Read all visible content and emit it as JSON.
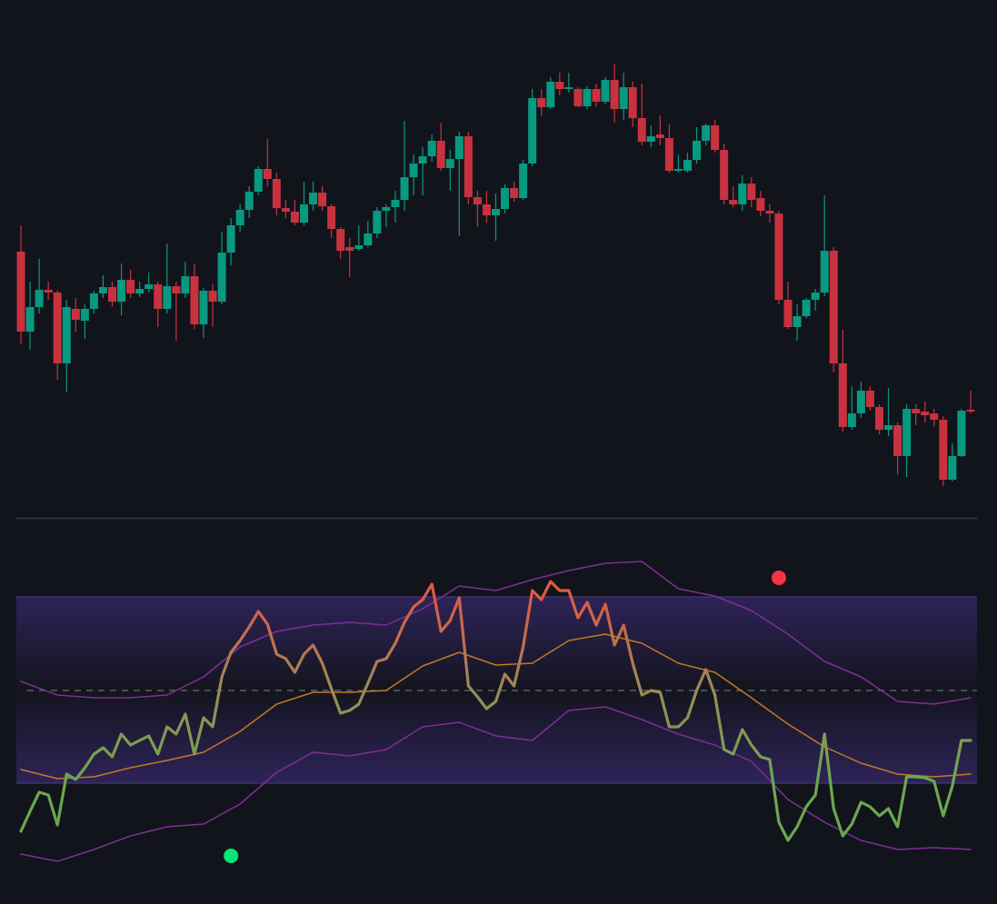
{
  "chart_data": [
    {
      "type": "candlestick",
      "up_color": "#089981",
      "down_color": "#c8323e",
      "xlim": [
        -0.5,
        104.7
      ],
      "ylim": [
        0,
        550
      ],
      "open": [
        293,
        205,
        232,
        251,
        248,
        170,
        230,
        217,
        230,
        247,
        254,
        238,
        262,
        247,
        252,
        257,
        230,
        255,
        247,
        266,
        213,
        250,
        238,
        292,
        322,
        339,
        359,
        384,
        373,
        341,
        337,
        325,
        345,
        358,
        343,
        318,
        298,
        296,
        300,
        313,
        338,
        342,
        350,
        375,
        390,
        398,
        415,
        385,
        395,
        420,
        353,
        345,
        333,
        340,
        363,
        352,
        390,
        462,
        452,
        480,
        472,
        472,
        453,
        472,
        458,
        482,
        450,
        474,
        440,
        414,
        422,
        418,
        382,
        382,
        394,
        415,
        432,
        405,
        350,
        345,
        368,
        352,
        338,
        335,
        240,
        210,
        222,
        240,
        248,
        294,
        170,
        100,
        115,
        140,
        122,
        97,
        102,
        68,
        120,
        117,
        115,
        108,
        42,
        68,
        119
      ],
      "high": [
        322,
        260,
        285,
        260,
        250,
        240,
        242,
        235,
        250,
        267,
        260,
        280,
        273,
        260,
        270,
        260,
        302,
        260,
        282,
        280,
        253,
        257,
        315,
        330,
        345,
        365,
        387,
        417,
        380,
        350,
        350,
        370,
        370,
        365,
        345,
        320,
        308,
        322,
        327,
        342,
        345,
        360,
        437,
        400,
        408,
        422,
        435,
        405,
        425,
        425,
        360,
        360,
        357,
        367,
        370,
        394,
        472,
        472,
        485,
        490,
        490,
        474,
        475,
        478,
        485,
        500,
        490,
        480,
        478,
        432,
        443,
        433,
        400,
        402,
        430,
        434,
        438,
        412,
        365,
        377,
        375,
        360,
        345,
        338,
        260,
        235,
        242,
        252,
        355,
        298,
        207,
        145,
        150,
        145,
        125,
        143,
        105,
        125,
        125,
        128,
        120,
        112,
        82,
        120,
        140
      ],
      "low": [
        192,
        185,
        225,
        240,
        152,
        138,
        205,
        197,
        225,
        242,
        233,
        223,
        242,
        243,
        248,
        210,
        225,
        195,
        242,
        208,
        198,
        210,
        235,
        278,
        315,
        330,
        355,
        365,
        333,
        330,
        322,
        322,
        338,
        338,
        308,
        285,
        265,
        294,
        298,
        308,
        320,
        325,
        338,
        355,
        355,
        392,
        382,
        360,
        310,
        345,
        320,
        325,
        305,
        335,
        348,
        350,
        387,
        442,
        450,
        465,
        468,
        452,
        450,
        452,
        455,
        435,
        438,
        430,
        410,
        408,
        410,
        380,
        380,
        380,
        390,
        410,
        402,
        345,
        342,
        338,
        342,
        332,
        325,
        235,
        208,
        195,
        220,
        228,
        244,
        160,
        95,
        97,
        110,
        118,
        92,
        90,
        48,
        45,
        102,
        105,
        100,
        35,
        40,
        67,
        115
      ],
      "close": [
        205,
        232,
        251,
        248,
        170,
        232,
        218,
        230,
        247,
        254,
        238,
        262,
        247,
        252,
        257,
        230,
        255,
        247,
        266,
        213,
        250,
        238,
        292,
        322,
        339,
        359,
        384,
        373,
        341,
        337,
        325,
        345,
        358,
        343,
        318,
        294,
        294,
        300,
        313,
        338,
        342,
        350,
        375,
        390,
        398,
        415,
        385,
        395,
        420,
        353,
        345,
        333,
        340,
        363,
        352,
        390,
        462,
        452,
        480,
        472,
        474,
        453,
        472,
        458,
        482,
        450,
        474,
        440,
        414,
        420,
        418,
        382,
        384,
        394,
        415,
        432,
        405,
        350,
        345,
        368,
        350,
        338,
        335,
        240,
        210,
        222,
        240,
        248,
        294,
        170,
        100,
        115,
        140,
        122,
        97,
        102,
        68,
        120,
        115,
        113,
        108,
        42,
        68,
        118,
        117
      ]
    },
    {
      "type": "oscillator",
      "xlim": [
        -0.5,
        104.7
      ],
      "ylim": [
        0,
        370
      ],
      "levels": [
        307,
        204,
        102
      ],
      "band_color": "#2e2358",
      "level_color": "#3b3568",
      "series": [
        {
          "colors": [
            "#dd5a45",
            "#9c8a58",
            "#6aa84f"
          ],
          "values": [
            49,
            71,
            92,
            89,
            56,
            112,
            106,
            119,
            134,
            141,
            131,
            156,
            144,
            149,
            154,
            134,
            164,
            156,
            178,
            134,
            174,
            164,
            219,
            246,
            259,
            274,
            291,
            277,
            244,
            239,
            224,
            244,
            254,
            234,
            206,
            179,
            182,
            189,
            212,
            236,
            239,
            256,
            279,
            296,
            304,
            321,
            269,
            281,
            306,
            209,
            197,
            184,
            192,
            222,
            209,
            252,
            314,
            304,
            324,
            314,
            314,
            284,
            301,
            276,
            299,
            254,
            276,
            234,
            199,
            204,
            202,
            164,
            164,
            174,
            204,
            227,
            199,
            139,
            134,
            161,
            144,
            131,
            128,
            59,
            39,
            54,
            76,
            89,
            156,
            74,
            44,
            57,
            81,
            76,
            66,
            74,
            54,
            109,
            109,
            108,
            104,
            66,
            99,
            149,
            149
          ]
        },
        {
          "color": "#c27a22",
          "x": [
            0,
            4,
            8,
            12,
            16,
            20,
            24,
            28,
            32,
            36,
            40,
            44,
            48,
            52,
            56,
            60,
            64,
            68,
            72,
            76,
            80,
            84,
            88,
            92,
            96,
            100,
            104
          ],
          "values": [
            117,
            107,
            109,
            119,
            127,
            136,
            159,
            189,
            202,
            202,
            204,
            231,
            246,
            232,
            234,
            259,
            266,
            256,
            234,
            224,
            196,
            167,
            142,
            124,
            112,
            109,
            112
          ]
        },
        {
          "color": "#7e2f96",
          "x": [
            0,
            4,
            8,
            12,
            16,
            20,
            24,
            28,
            32,
            36,
            40,
            44,
            48,
            52,
            56,
            60,
            64,
            68,
            72,
            76,
            80,
            84,
            88,
            92,
            96,
            100,
            104
          ],
          "values": [
            214,
            199,
            196,
            196,
            199,
            219,
            252,
            269,
            276,
            279,
            276,
            294,
            319,
            314,
            326,
            336,
            344,
            346,
            316,
            308,
            292,
            266,
            236,
            219,
            192,
            189,
            196
          ]
        },
        {
          "color": "#7e2f96",
          "x": [
            0,
            4,
            8,
            12,
            16,
            20,
            24,
            28,
            32,
            36,
            40,
            44,
            48,
            52,
            56,
            60,
            64,
            68,
            72,
            76,
            80,
            84,
            88,
            92,
            96,
            100,
            104
          ],
          "values": [
            24,
            16,
            29,
            44,
            54,
            57,
            79,
            114,
            136,
            132,
            139,
            164,
            169,
            154,
            149,
            182,
            186,
            172,
            156,
            144,
            126,
            84,
            59,
            39,
            29,
            31,
            29
          ]
        }
      ],
      "markers": [
        {
          "x": 83,
          "value": 328,
          "color": "#f23645"
        },
        {
          "x": 23,
          "value": 22,
          "color": "#00e676"
        }
      ]
    }
  ]
}
